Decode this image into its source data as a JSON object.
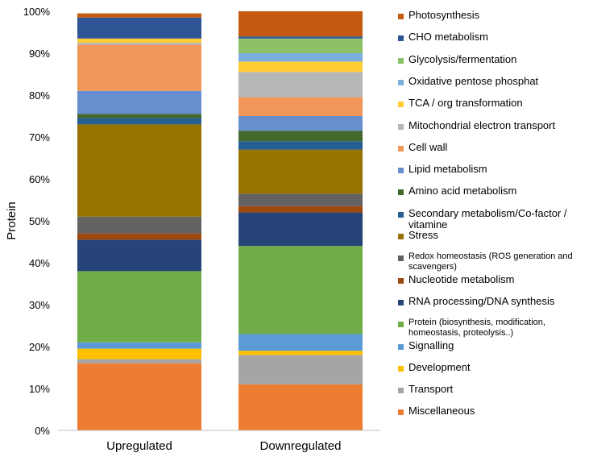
{
  "chart_data": {
    "type": "bar",
    "stacked": true,
    "percent_stacked": true,
    "title": "",
    "xlabel": "",
    "ylabel": "Protein",
    "ylim": [
      0,
      100
    ],
    "y_ticks": [
      "0%",
      "10%",
      "20%",
      "30%",
      "40%",
      "50%",
      "60%",
      "70%",
      "80%",
      "90%",
      "100%"
    ],
    "categories": [
      "Upregulated",
      "Downregulated"
    ],
    "series": [
      {
        "name": "Miscellaneous",
        "color": "#ED7D31",
        "values": [
          16.0,
          11.0
        ]
      },
      {
        "name": "Transport",
        "color": "#A5A5A5",
        "values": [
          1.0,
          7.0
        ]
      },
      {
        "name": "Development",
        "color": "#FFC000",
        "values": [
          2.5,
          1.0
        ]
      },
      {
        "name": "Signalling",
        "color": "#5B9BD5",
        "values": [
          1.5,
          4.0
        ]
      },
      {
        "name": "Protein (biosynthesis, modification, homeostasis, proteolysis..)",
        "color": "#70AD47",
        "values": [
          17.0,
          21.0
        ]
      },
      {
        "name": "RNA processing/DNA synthesis",
        "color": "#264478",
        "values": [
          7.5,
          8.0
        ]
      },
      {
        "name": "Nucleotide metabolism",
        "color": "#9E480E",
        "values": [
          1.5,
          1.5
        ]
      },
      {
        "name": "Redox homeostasis (ROS generation and scavengers)",
        "color": "#636363",
        "values": [
          4.0,
          3.0
        ]
      },
      {
        "name": "Stress",
        "color": "#997300",
        "values": [
          22.0,
          10.5
        ]
      },
      {
        "name": "Secondary metabolism/Co-factor / vitamine",
        "color": "#255E91",
        "values": [
          1.5,
          2.0
        ]
      },
      {
        "name": "Amino acid metabolism",
        "color": "#43682B",
        "values": [
          1.0,
          2.5
        ]
      },
      {
        "name": "Lipid metabolism",
        "color": "#698ED0",
        "values": [
          5.5,
          3.5
        ]
      },
      {
        "name": "Cell wall",
        "color": "#F1975A",
        "values": [
          11.0,
          4.5
        ]
      },
      {
        "name": "Mitochondrial electron transport",
        "color": "#B7B7B7",
        "values": [
          0.5,
          6.0
        ]
      },
      {
        "name": "TCA / org transformation",
        "color": "#FFCD33",
        "values": [
          1.0,
          2.5
        ]
      },
      {
        "name": "Oxidative pentose phosphat",
        "color": "#7CAFDD",
        "values": [
          0.0,
          2.0
        ]
      },
      {
        "name": "Glycolysis/fermentation",
        "color": "#8CC168",
        "values": [
          0.0,
          3.5
        ]
      },
      {
        "name": "CHO metabolism",
        "color": "#2F5597",
        "values": [
          5.0,
          0.5
        ]
      },
      {
        "name": "Photosynthesis",
        "color": "#C55A11",
        "values": [
          1.0,
          6.0
        ]
      }
    ],
    "legend_position": "right",
    "grid": false
  }
}
